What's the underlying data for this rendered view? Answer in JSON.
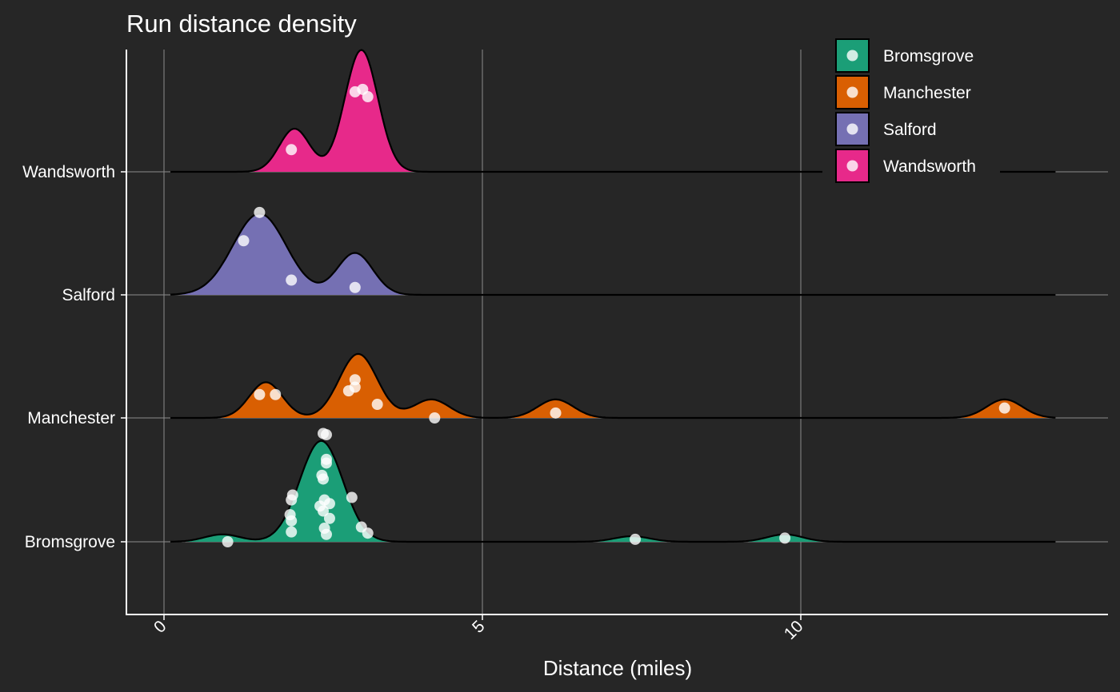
{
  "chart_data": {
    "type": "ridgeline",
    "title": "Run distance density",
    "xlabel": "Distance (miles)",
    "ylabel": "",
    "xlim": [
      -0.6,
      14.8
    ],
    "xticks": [
      0,
      5,
      10
    ],
    "grid": true,
    "legend_position": "top-right",
    "categories": [
      "Bromsgrove",
      "Manchester",
      "Salford",
      "Wandsworth"
    ],
    "series": [
      {
        "name": "Bromsgrove",
        "color": "#1B9E77",
        "points": [
          {
            "x": 1.0,
            "y": 0.0
          },
          {
            "x": 2.0,
            "y": 0.4
          },
          {
            "x": 2.0,
            "y": 0.85
          },
          {
            "x": 1.98,
            "y": 1.1
          },
          {
            "x": 2.0,
            "y": 1.7
          },
          {
            "x": 2.02,
            "y": 1.9
          },
          {
            "x": 2.45,
            "y": 1.45
          },
          {
            "x": 2.5,
            "y": 1.25
          },
          {
            "x": 2.52,
            "y": 0.55
          },
          {
            "x": 2.55,
            "y": 0.3
          },
          {
            "x": 2.6,
            "y": 1.55
          },
          {
            "x": 2.6,
            "y": 0.95
          },
          {
            "x": 2.5,
            "y": 2.55
          },
          {
            "x": 2.55,
            "y": 3.35
          },
          {
            "x": 2.55,
            "y": 3.2
          },
          {
            "x": 2.5,
            "y": 4.4
          },
          {
            "x": 2.55,
            "y": 4.35
          },
          {
            "x": 2.48,
            "y": 2.7
          },
          {
            "x": 2.52,
            "y": 1.7
          },
          {
            "x": 2.95,
            "y": 1.8
          },
          {
            "x": 3.1,
            "y": 0.6
          },
          {
            "x": 3.2,
            "y": 0.35
          },
          {
            "x": 7.4,
            "y": 0.1
          },
          {
            "x": 9.75,
            "y": 0.15
          }
        ],
        "peaks": [
          {
            "mu": 0.92,
            "sigma": 0.28,
            "a": 0.06
          },
          {
            "mu": 2.47,
            "sigma": 0.34,
            "a": 0.82
          },
          {
            "mu": 7.35,
            "sigma": 0.28,
            "a": 0.045
          },
          {
            "mu": 9.75,
            "sigma": 0.28,
            "a": 0.06
          }
        ]
      },
      {
        "name": "Manchester",
        "color": "#D95F02",
        "points": [
          {
            "x": 1.5,
            "y": 0.95
          },
          {
            "x": 1.75,
            "y": 0.95
          },
          {
            "x": 2.9,
            "y": 1.1
          },
          {
            "x": 3.0,
            "y": 1.55
          },
          {
            "x": 3.0,
            "y": 1.25
          },
          {
            "x": 3.35,
            "y": 0.55
          },
          {
            "x": 4.25,
            "y": 0.0
          },
          {
            "x": 6.15,
            "y": 0.2
          },
          {
            "x": 13.2,
            "y": 0.4
          }
        ],
        "peaks": [
          {
            "mu": 1.6,
            "sigma": 0.26,
            "a": 0.29
          },
          {
            "mu": 3.05,
            "sigma": 0.3,
            "a": 0.52
          },
          {
            "mu": 4.2,
            "sigma": 0.28,
            "a": 0.15
          },
          {
            "mu": 6.15,
            "sigma": 0.28,
            "a": 0.15
          },
          {
            "mu": 13.2,
            "sigma": 0.28,
            "a": 0.15
          }
        ]
      },
      {
        "name": "Salford",
        "color": "#7570B3",
        "points": [
          {
            "x": 1.5,
            "y": 3.35
          },
          {
            "x": 1.25,
            "y": 2.2
          },
          {
            "x": 2.0,
            "y": 0.6
          },
          {
            "x": 3.0,
            "y": 0.3
          }
        ],
        "peaks": [
          {
            "mu": 1.5,
            "sigma": 0.42,
            "a": 0.66
          },
          {
            "mu": 3.0,
            "sigma": 0.28,
            "a": 0.34
          }
        ]
      },
      {
        "name": "Wandsworth",
        "color": "#E7298A",
        "points": [
          {
            "x": 2.0,
            "y": 0.9
          },
          {
            "x": 3.0,
            "y": 3.25
          },
          {
            "x": 3.12,
            "y": 3.35
          },
          {
            "x": 3.2,
            "y": 3.05
          }
        ],
        "peaks": [
          {
            "mu": 2.05,
            "sigma": 0.24,
            "a": 0.35
          },
          {
            "mu": 3.1,
            "sigma": 0.26,
            "a": 0.99
          }
        ]
      }
    ]
  }
}
